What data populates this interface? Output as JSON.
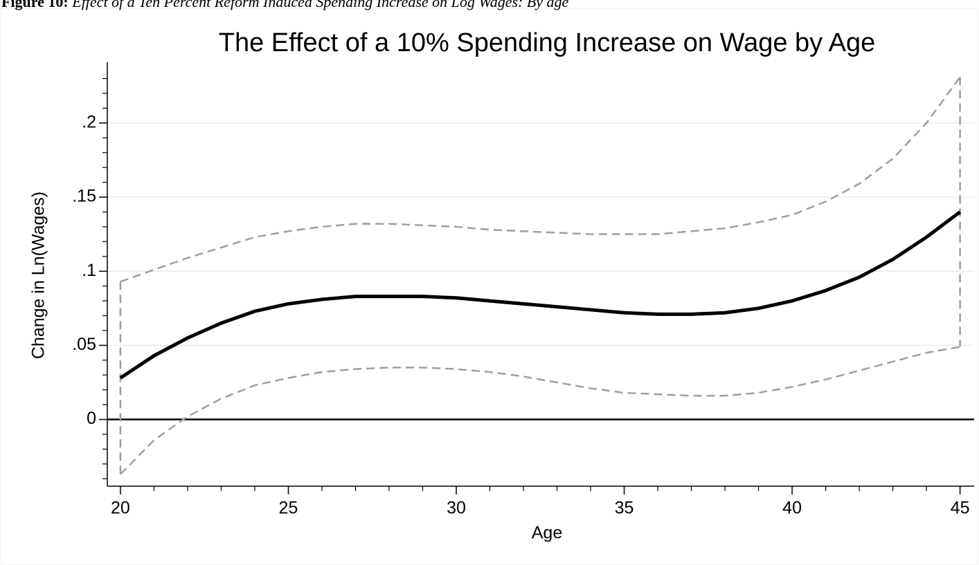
{
  "caption": {
    "label": "Figure 10:",
    "text": "Effect of a Ten Percent Reform Induced Spending Increase on Log Wages: By age"
  },
  "chart_data": {
    "type": "line",
    "title": "The Effect of a 10% Spending Increase on Wage by Age",
    "xlabel": "Age",
    "ylabel": "Change in Ln(Wages)",
    "x": [
      20,
      21,
      22,
      23,
      24,
      25,
      26,
      27,
      28,
      29,
      30,
      31,
      32,
      33,
      34,
      35,
      36,
      37,
      38,
      39,
      40,
      41,
      42,
      43,
      44,
      45
    ],
    "series": [
      {
        "color": "#000000",
        "line_style": "solid",
        "values": [
          0.028,
          0.043,
          0.055,
          0.065,
          0.073,
          0.078,
          0.081,
          0.083,
          0.083,
          0.083,
          0.082,
          0.08,
          0.078,
          0.076,
          0.074,
          0.072,
          0.071,
          0.071,
          0.072,
          0.075,
          0.08,
          0.087,
          0.096,
          0.108,
          0.123,
          0.14
        ]
      },
      {
        "color": "#9e9e9e",
        "line_style": "dashed",
        "values": [
          0.093,
          0.101,
          0.109,
          0.116,
          0.123,
          0.127,
          0.13,
          0.132,
          0.132,
          0.131,
          0.13,
          0.128,
          0.127,
          0.126,
          0.125,
          0.125,
          0.125,
          0.127,
          0.129,
          0.133,
          0.138,
          0.147,
          0.159,
          0.176,
          0.2,
          0.231
        ]
      },
      {
        "color": "#9e9e9e",
        "line_style": "dashed",
        "values": [
          -0.037,
          -0.014,
          0.002,
          0.014,
          0.023,
          0.028,
          0.032,
          0.034,
          0.035,
          0.035,
          0.034,
          0.032,
          0.029,
          0.025,
          0.021,
          0.018,
          0.017,
          0.016,
          0.016,
          0.018,
          0.022,
          0.027,
          0.033,
          0.039,
          0.045,
          0.049
        ]
      }
    ],
    "band_closed": true,
    "xlim": [
      19.61,
      45.42
    ],
    "ylim": [
      -0.045,
      0.241
    ],
    "xticks": [
      20,
      25,
      30,
      35,
      40,
      45
    ],
    "x_minor_ticks": [
      21,
      22,
      23,
      24,
      26,
      27,
      28,
      29,
      31,
      32,
      33,
      34,
      36,
      37,
      38,
      39,
      41,
      42,
      43,
      44
    ],
    "yticks": [
      0,
      {
        "value": 0.05,
        "label": ".05"
      },
      {
        "value": 0.1,
        "label": ".1"
      },
      {
        "value": 0.15,
        "label": ".15"
      },
      {
        "value": 0.2,
        "label": ".2"
      }
    ],
    "y_minor_ticks": [
      -0.04,
      -0.03,
      -0.02,
      -0.01,
      0.01,
      0.02,
      0.03,
      0.04,
      0.06,
      0.07,
      0.08,
      0.09,
      0.11,
      0.12,
      0.13,
      0.14,
      0.16,
      0.17,
      0.18,
      0.19,
      0.21,
      0.22,
      0.23
    ],
    "grid": true,
    "grid_color": "#e3eef2",
    "hline": 0
  }
}
